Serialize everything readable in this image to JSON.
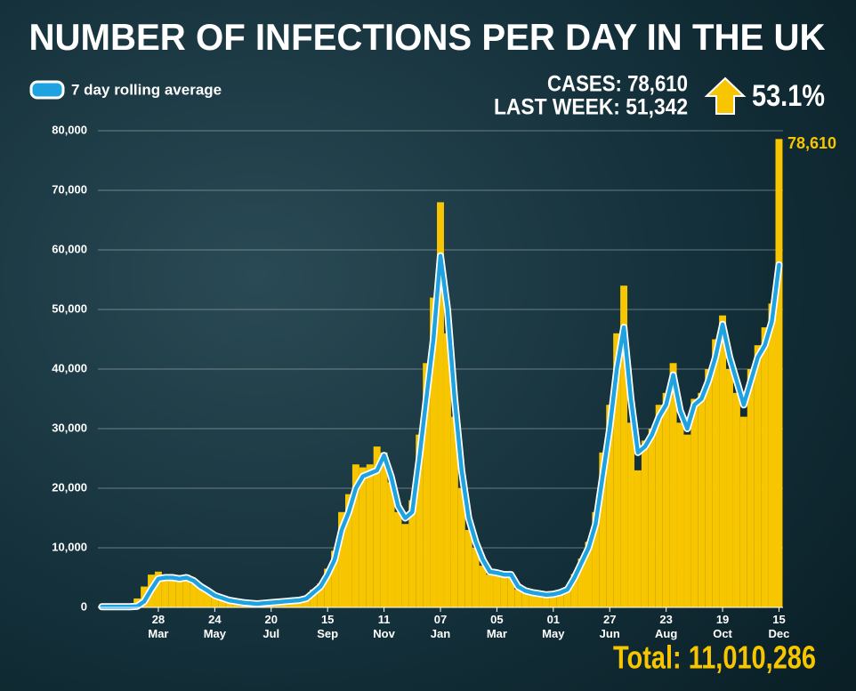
{
  "chart_data": {
    "type": "bar",
    "title": "NUMBER OF INFECTIONS PER DAY IN THE UK",
    "cases": "CASES: 78,610",
    "last_week": "LAST WEEK: 51,342",
    "change": "53.1%",
    "peak_label": "78,610",
    "total": "Total: 11,010,286",
    "bar_color": "#f7c600",
    "x": [
      0,
      7,
      14,
      21,
      28,
      35,
      42,
      49,
      56,
      63,
      70,
      77,
      84,
      91,
      98,
      105,
      112,
      119,
      126,
      133,
      140,
      147,
      154,
      161,
      168,
      175,
      182,
      189,
      196,
      203,
      210,
      217,
      224,
      231,
      238,
      245,
      252,
      259,
      266,
      273,
      280,
      287,
      294,
      301,
      308,
      315,
      322,
      329,
      336,
      343,
      350,
      357,
      364,
      371,
      378,
      385,
      392,
      399,
      406,
      413,
      420,
      427,
      434,
      441,
      448,
      455,
      462,
      469,
      476,
      483,
      490,
      497,
      504,
      511,
      518,
      525,
      532,
      539,
      546,
      553,
      560,
      567,
      574,
      581,
      588,
      595,
      602,
      609,
      616,
      623,
      630,
      637,
      644,
      651,
      658,
      665,
      672
    ],
    "values": [
      100,
      100,
      100,
      200,
      300,
      1500,
      3500,
      5500,
      6000,
      5200,
      4800,
      4900,
      5500,
      4000,
      3200,
      2600,
      1900,
      1400,
      1100,
      900,
      800,
      700,
      600,
      800,
      900,
      1000,
      1100,
      1200,
      1300,
      1800,
      3000,
      4000,
      6500,
      9500,
      16000,
      19000,
      24000,
      23500,
      24000,
      27000,
      26000,
      21000,
      16000,
      14000,
      18000,
      29000,
      41000,
      52000,
      68000,
      46000,
      32000,
      20000,
      13000,
      10000,
      7000,
      5500,
      6000,
      5200,
      5000,
      3000,
      2600,
      2400,
      2200,
      2000,
      2300,
      2700,
      3300,
      5600,
      8200,
      11000,
      16000,
      26000,
      34000,
      46000,
      54000,
      31000,
      23000,
      28000,
      30000,
      34000,
      36000,
      41000,
      31000,
      29000,
      35000,
      36000,
      40000,
      45000,
      49000,
      40000,
      36000,
      32000,
      40000,
      44000,
      47000,
      51000,
      78610
    ],
    "series": [
      {
        "name": "7 day rolling average",
        "color": "#1fa3e0",
        "values": [
          100,
          100,
          100,
          100,
          100,
          200,
          1000,
          3000,
          4800,
          5000,
          5000,
          4800,
          5000,
          4500,
          3500,
          2800,
          2000,
          1600,
          1200,
          1000,
          800,
          700,
          600,
          700,
          800,
          900,
          1000,
          1100,
          1200,
          1500,
          2500,
          3500,
          5500,
          8000,
          13000,
          16000,
          20000,
          22000,
          22500,
          23000,
          25500,
          22000,
          17000,
          15000,
          16000,
          25000,
          35000,
          45000,
          59000,
          50000,
          35000,
          23000,
          15000,
          11000,
          8000,
          6000,
          5800,
          5500,
          5500,
          3500,
          2800,
          2500,
          2300,
          2100,
          2200,
          2500,
          3000,
          5000,
          7500,
          10000,
          14000,
          22000,
          30000,
          40000,
          47000,
          35000,
          26000,
          27000,
          29000,
          32000,
          34000,
          39000,
          33000,
          30000,
          34000,
          35000,
          38000,
          42000,
          47500,
          42000,
          38000,
          34000,
          38000,
          42000,
          44000,
          48000,
          57500
        ]
      }
    ],
    "xlim": [
      -4,
      676
    ],
    "xticks": [
      {
        "value": 56,
        "label": "28 Mar"
      },
      {
        "value": 112,
        "label": "24 May"
      },
      {
        "value": 168,
        "label": "20 Jul"
      },
      {
        "value": 224,
        "label": "15 Sep"
      },
      {
        "value": 280,
        "label": "11 Nov"
      },
      {
        "value": 336,
        "label": "07 Jan"
      },
      {
        "value": 392,
        "label": "05 Mar"
      },
      {
        "value": 448,
        "label": "01 May"
      },
      {
        "value": 504,
        "label": "27 Jun"
      },
      {
        "value": 560,
        "label": "23 Aug"
      },
      {
        "value": 616,
        "label": "19 Oct"
      },
      {
        "value": 672,
        "label": "15 Dec"
      }
    ],
    "ylim": [
      0,
      80000
    ],
    "yticks": [
      0,
      {
        "value": 10000,
        "label": "10,000"
      },
      {
        "value": 20000,
        "label": "20,000"
      },
      {
        "value": 30000,
        "label": "30,000"
      },
      {
        "value": 40000,
        "label": "40,000"
      },
      {
        "value": 50000,
        "label": "50,000"
      },
      {
        "value": 60000,
        "label": "60,000"
      },
      {
        "value": 70000,
        "label": "70,000"
      },
      {
        "value": 80000,
        "label": "80,000"
      }
    ],
    "grid": true
  }
}
